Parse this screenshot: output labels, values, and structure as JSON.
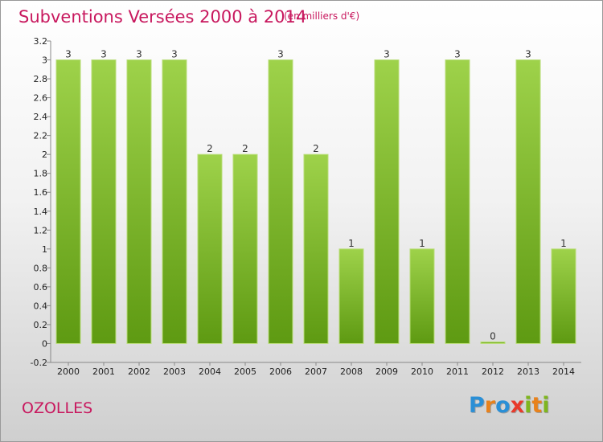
{
  "header": {
    "title": "Subventions Versées 2000 à 2014",
    "unit": "(en milliers d'€)"
  },
  "commune": "OZOLLES",
  "brand": {
    "letters": [
      "P",
      "r",
      "o",
      "x",
      "i",
      "t",
      "i"
    ],
    "colors": [
      "#2a8fd6",
      "#e8821c",
      "#2a8fd6",
      "#e83a2a",
      "#7fb61e",
      "#e8821c",
      "#7fb61e"
    ]
  },
  "colors": {
    "bar_light": "#9ed24a",
    "bar_dark": "#5e9a12",
    "title": "#c8185e"
  },
  "chart_data": {
    "type": "bar",
    "categories": [
      "2000",
      "2001",
      "2002",
      "2003",
      "2004",
      "2005",
      "2006",
      "2007",
      "2008",
      "2009",
      "2010",
      "2011",
      "2012",
      "2013",
      "2014"
    ],
    "values": [
      3,
      3,
      3,
      3,
      2,
      2,
      3,
      2,
      1,
      3,
      1,
      3,
      0,
      3,
      1
    ],
    "data_labels": [
      "3",
      "3",
      "3",
      "3",
      "2",
      "2",
      "3",
      "2",
      "1",
      "3",
      "1",
      "3",
      "0",
      "3",
      "1"
    ],
    "title": "Subventions Versées 2000 à 2014",
    "ylim": [
      -0.2,
      3.2
    ],
    "yticks": [
      "-0.2",
      "0",
      "0.2",
      "0.4",
      "0.6",
      "0.8",
      "1",
      "1.2",
      "1.4",
      "1.6",
      "1.8",
      "2",
      "2.2",
      "2.4",
      "2.6",
      "2.8",
      "3",
      "3.2"
    ],
    "ytick_values": [
      -0.2,
      0,
      0.2,
      0.4,
      0.6,
      0.8,
      1,
      1.2,
      1.4,
      1.6,
      1.8,
      2,
      2.2,
      2.4,
      2.6,
      2.8,
      3,
      3.2
    ],
    "grid": false
  }
}
